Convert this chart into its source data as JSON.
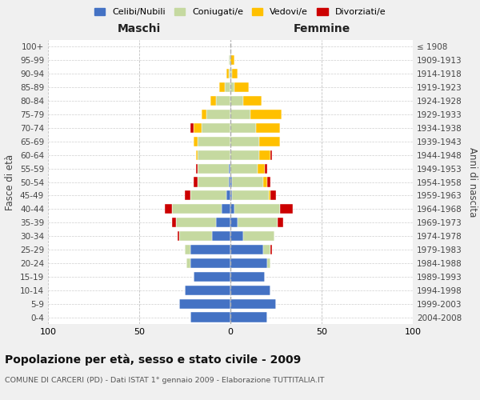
{
  "age_groups": [
    "0-4",
    "5-9",
    "10-14",
    "15-19",
    "20-24",
    "25-29",
    "30-34",
    "35-39",
    "40-44",
    "45-49",
    "50-54",
    "55-59",
    "60-64",
    "65-69",
    "70-74",
    "75-79",
    "80-84",
    "85-89",
    "90-94",
    "95-99",
    "100+"
  ],
  "birth_years": [
    "2004-2008",
    "1999-2003",
    "1994-1998",
    "1989-1993",
    "1984-1988",
    "1979-1983",
    "1974-1978",
    "1969-1973",
    "1964-1968",
    "1959-1963",
    "1954-1958",
    "1949-1953",
    "1944-1948",
    "1939-1943",
    "1934-1938",
    "1929-1933",
    "1924-1928",
    "1919-1923",
    "1914-1918",
    "1909-1913",
    "≤ 1908"
  ],
  "male": {
    "celibi": [
      22,
      28,
      25,
      20,
      22,
      22,
      10,
      8,
      5,
      2,
      1,
      1,
      0,
      0,
      0,
      0,
      0,
      0,
      0,
      0,
      0
    ],
    "coniugati": [
      0,
      0,
      0,
      0,
      2,
      3,
      18,
      22,
      27,
      20,
      17,
      17,
      18,
      18,
      16,
      13,
      8,
      3,
      1,
      1,
      0
    ],
    "vedovi": [
      0,
      0,
      0,
      0,
      0,
      0,
      0,
      0,
      0,
      0,
      0,
      0,
      1,
      2,
      4,
      3,
      3,
      3,
      1,
      0,
      0
    ],
    "divorziati": [
      0,
      0,
      0,
      0,
      0,
      0,
      1,
      2,
      4,
      3,
      2,
      1,
      0,
      0,
      2,
      0,
      0,
      0,
      0,
      0,
      0
    ]
  },
  "female": {
    "nubili": [
      20,
      25,
      22,
      19,
      20,
      18,
      7,
      4,
      2,
      1,
      1,
      0,
      0,
      0,
      0,
      0,
      0,
      0,
      0,
      0,
      0
    ],
    "coniugate": [
      0,
      0,
      0,
      0,
      2,
      4,
      17,
      22,
      25,
      20,
      17,
      15,
      16,
      16,
      14,
      11,
      7,
      2,
      1,
      0,
      0
    ],
    "vedove": [
      0,
      0,
      0,
      0,
      0,
      0,
      0,
      0,
      0,
      1,
      2,
      4,
      6,
      11,
      13,
      17,
      10,
      8,
      3,
      2,
      0
    ],
    "divorziate": [
      0,
      0,
      0,
      0,
      0,
      1,
      0,
      3,
      7,
      3,
      2,
      1,
      1,
      0,
      0,
      0,
      0,
      0,
      0,
      0,
      0
    ]
  },
  "colors": {
    "celibi": "#4472c4",
    "coniugati": "#c5d9a0",
    "vedovi": "#ffc000",
    "divorziati": "#cc0000"
  },
  "title": "Popolazione per età, sesso e stato civile - 2009",
  "subtitle": "COMUNE DI CARCERI (PD) - Dati ISTAT 1° gennaio 2009 - Elaborazione TUTTITALIA.IT",
  "xlabel_left": "Maschi",
  "xlabel_right": "Femmine",
  "ylabel_left": "Fasce di età",
  "ylabel_right": "Anni di nascita",
  "xlim": 100,
  "bg_color": "#f0f0f0",
  "plot_bg": "#ffffff",
  "legend_labels": [
    "Celibi/Nubili",
    "Coniugati/e",
    "Vedovi/e",
    "Divorziati/e"
  ]
}
